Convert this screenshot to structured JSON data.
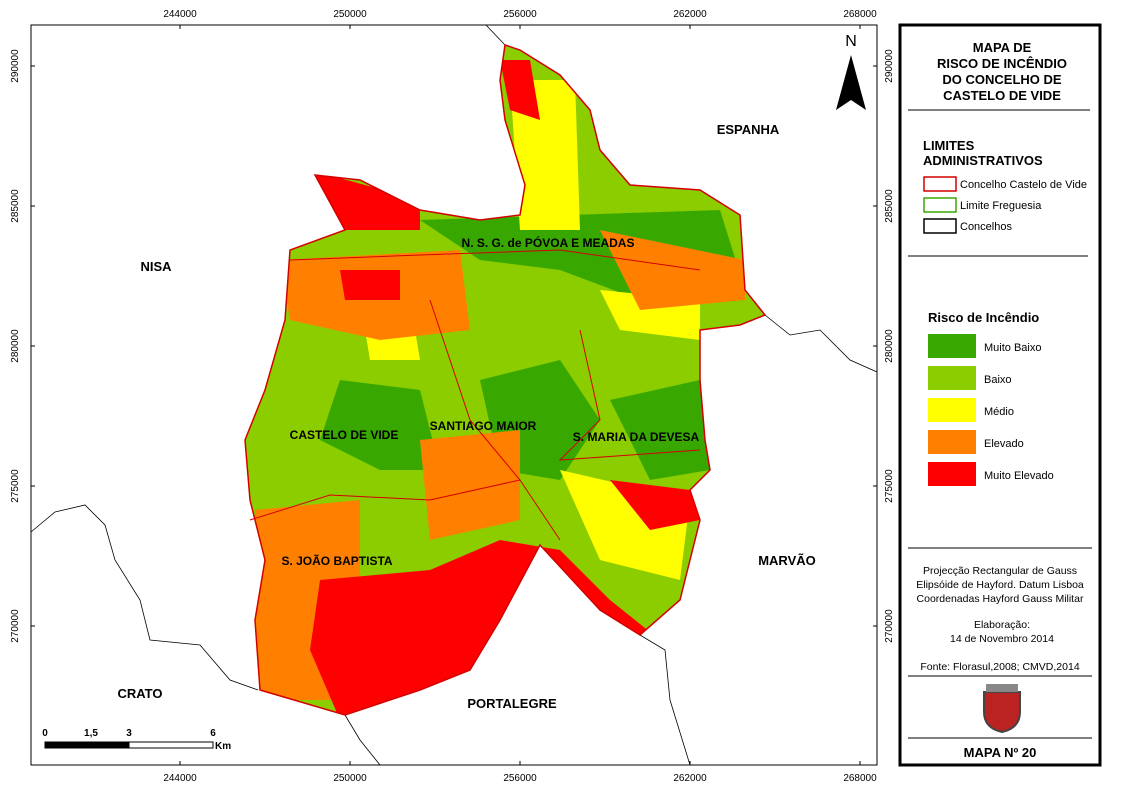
{
  "map": {
    "x_ticks": [
      244000,
      250000,
      256000,
      262000,
      268000
    ],
    "y_ticks": [
      290000,
      285000,
      280000,
      275000,
      270000
    ],
    "north": "N",
    "places": [
      "ESPANHA",
      "NISA",
      "CRATO",
      "PORTALEGRE",
      "MARVÃO"
    ],
    "parishes": [
      "N. S. G. de PÓVOA E MEADAS",
      "CASTELO DE VIDE",
      "SANTIAGO MAIOR",
      "S. MARIA DA DEVESA",
      "S. JOÃO BAPTISTA"
    ],
    "scale": {
      "labels": [
        "0",
        "1,5",
        "3",
        "6"
      ],
      "unit": "Km"
    }
  },
  "legend": {
    "title": [
      "MAPA DE",
      "RISCO DE INCÊNDIO",
      "DO CONCELHO DE",
      "CASTELO DE VIDE"
    ],
    "limits_title": [
      "LIMITES",
      "ADMINISTRATIVOS"
    ],
    "limits": [
      {
        "label": "Concelho Castelo de Vide",
        "color": "#d40000"
      },
      {
        "label": "Limite Freguesia",
        "color": "#38a800"
      },
      {
        "label": "Concelhos",
        "color": "#000000"
      }
    ],
    "risk_title": "Risco de Incêndio",
    "risk": [
      {
        "label": "Muito Baixo",
        "color": "#38a800"
      },
      {
        "label": "Baixo",
        "color": "#8ccd00"
      },
      {
        "label": "Médio",
        "color": "#ffff00"
      },
      {
        "label": "Elevado",
        "color": "#ff8000"
      },
      {
        "label": "Muito Elevado",
        "color": "#ff0000"
      }
    ],
    "projection": [
      "Projecção Rectangular de Gauss",
      "Elipsóide de Hayford. Datum Lisboa",
      "Coordenadas Hayford Gauss Militar"
    ],
    "elaboration": [
      "Elaboração:",
      "14 de Novembro 2014"
    ],
    "source": "Fonte: Florasul,2008; CMVD,2014",
    "map_number": "MAPA Nº 20"
  }
}
